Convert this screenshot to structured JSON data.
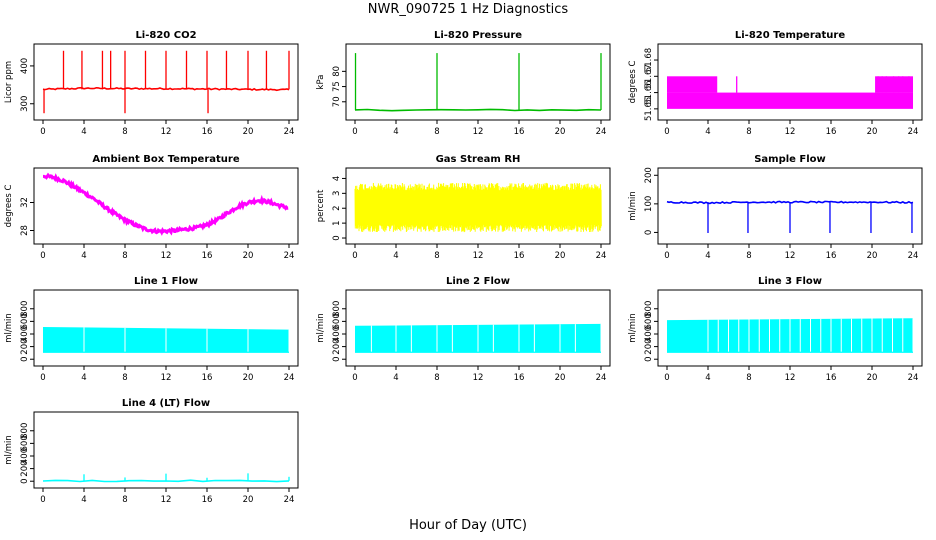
{
  "title": "NWR_090725  1 Hz Diagnostics",
  "xlabel": "Hour of Day (UTC)",
  "colors": {
    "co2": "#ff0000",
    "pressure": "#00bb00",
    "temperature": "#ff00ff",
    "box_temperature": "#ff00ff",
    "rh": "#ffff00",
    "sample_flow": "#0000ff",
    "line_flow": "#00ffff"
  },
  "chart_data": [
    {
      "type": "line",
      "title": "Li-820 CO2",
      "ylabel": "Licor ppm",
      "xlim": [
        0,
        24
      ],
      "x_ticks": [
        "0",
        "4",
        "8",
        "12",
        "16",
        "20",
        "24"
      ],
      "ylim": [
        265,
        450
      ],
      "y_ticks": [
        "300",
        "400"
      ],
      "color": "co2",
      "baseline": [
        [
          0,
          338
        ],
        [
          4,
          341
        ],
        [
          8,
          340
        ],
        [
          12,
          340
        ],
        [
          16,
          339
        ],
        [
          20,
          338
        ],
        [
          24,
          337
        ]
      ],
      "spikes_up": [
        2.0,
        3.8,
        5.8,
        6.6,
        8.0,
        10.0,
        12.0,
        14.0,
        16.0,
        17.9,
        20.0,
        21.8,
        24.0
      ],
      "spikes_up_value": 440,
      "spikes_down": [
        0.1,
        8.0,
        16.1
      ],
      "spikes_down_value": 275
    },
    {
      "type": "line",
      "title": "Li-820 Pressure",
      "ylabel": "kPa",
      "xlim": [
        0,
        24
      ],
      "x_ticks": [
        "0",
        "4",
        "8",
        "12",
        "16",
        "20",
        "24"
      ],
      "ylim": [
        65,
        88
      ],
      "y_ticks": [
        "70",
        "75",
        "80"
      ],
      "color": "pressure",
      "baseline": [
        [
          0,
          67.3
        ],
        [
          24,
          67.3
        ]
      ],
      "spikes_up": [
        0.05,
        8.0,
        16.0,
        24.0
      ],
      "spikes_up_value": 86,
      "spikes_down": [],
      "spikes_down_value": 67
    },
    {
      "type": "area",
      "title": "Li-820 Temperature",
      "ylabel": "degrees C",
      "xlim": [
        0,
        24
      ],
      "x_ticks": [
        "0",
        "4",
        "8",
        "12",
        "16",
        "20",
        "24"
      ],
      "ylim": [
        51.645,
        51.688
      ],
      "y_ticks": [
        "51.65",
        "51.66",
        "51.67",
        "51.68"
      ],
      "color": "temperature",
      "bands": [
        {
          "x_from": 0,
          "x_to": 24,
          "low": 51.65,
          "high": 51.66
        },
        {
          "x_from": 0,
          "x_to": 4.9,
          "low": 51.66,
          "high": 51.67
        },
        {
          "x_from": 20.3,
          "x_to": 24,
          "low": 51.66,
          "high": 51.67
        }
      ],
      "spikes_up": [
        6.8,
        20.6,
        21.0,
        21.4,
        22.1,
        22.6,
        23.0,
        23.6
      ],
      "spikes_up_value": 51.67
    },
    {
      "type": "line",
      "title": "Ambient Box Temperature",
      "ylabel": "degrees C",
      "xlim": [
        0,
        24
      ],
      "x_ticks": [
        "0",
        "4",
        "8",
        "12",
        "16",
        "20",
        "24"
      ],
      "ylim": [
        26.5,
        36.5
      ],
      "y_ticks": [
        "28",
        "32"
      ],
      "color": "box_temperature",
      "x": [
        0,
        1,
        2,
        3,
        4,
        5,
        6,
        7,
        8,
        9,
        10,
        11,
        12,
        13,
        14,
        15,
        16,
        17,
        18,
        19,
        20,
        21,
        22,
        23,
        24
      ],
      "y": [
        35.8,
        35.6,
        35.1,
        34.3,
        33.4,
        32.5,
        31.4,
        30.4,
        29.5,
        28.8,
        28.2,
        27.9,
        27.9,
        28.0,
        28.2,
        28.4,
        28.8,
        29.5,
        30.5,
        31.4,
        32.0,
        32.3,
        32.1,
        31.6,
        31.2
      ],
      "noise": 0.45
    },
    {
      "type": "area",
      "title": "Gas Stream RH",
      "ylabel": "percent",
      "xlim": [
        0,
        24
      ],
      "x_ticks": [
        "0",
        "4",
        "8",
        "12",
        "16",
        "20",
        "24"
      ],
      "ylim": [
        -0.2,
        4.5
      ],
      "y_ticks": [
        "0",
        "1",
        "2",
        "3",
        "4"
      ],
      "color": "rh",
      "low": 0.4,
      "high": 3.7
    },
    {
      "type": "line",
      "title": "Sample Flow",
      "ylabel": "ml/min",
      "xlim": [
        0,
        24
      ],
      "x_ticks": [
        "0",
        "4",
        "8",
        "12",
        "16",
        "20",
        "24"
      ],
      "ylim": [
        -30,
        215
      ],
      "y_ticks": [
        "0",
        "100",
        "200"
      ],
      "color": "sample_flow",
      "baseline": [
        [
          0,
          106
        ],
        [
          4,
          104
        ],
        [
          8,
          106
        ],
        [
          12,
          106
        ],
        [
          16,
          106
        ],
        [
          20,
          106
        ],
        [
          24,
          105
        ]
      ],
      "spikes_down": [
        4.0,
        7.9,
        12.0,
        15.9,
        19.9,
        23.9
      ],
      "spikes_down_value": -2
    },
    {
      "type": "area",
      "title": "Line 1 Flow",
      "ylabel": "ml/min",
      "xlim": [
        0,
        24
      ],
      "x_ticks": [
        "0",
        "4",
        "8",
        "12",
        "16",
        "20",
        "24"
      ],
      "ylim": [
        -60,
        1050
      ],
      "y_ticks": [
        "0",
        "200",
        "400",
        "600",
        "800"
      ],
      "color": "line_flow",
      "low": 100,
      "high_start": 510,
      "high_end": 470,
      "gaps": [
        4,
        8,
        12,
        16,
        20,
        24
      ]
    },
    {
      "type": "area",
      "title": "Line 2 Flow",
      "ylabel": "ml/min",
      "xlim": [
        0,
        24
      ],
      "x_ticks": [
        "0",
        "4",
        "8",
        "12",
        "16",
        "20",
        "24"
      ],
      "ylim": [
        -60,
        1050
      ],
      "y_ticks": [
        "0",
        "200",
        "400",
        "600",
        "800"
      ],
      "color": "line_flow",
      "low": 100,
      "high_start": 530,
      "high_end": 560,
      "gaps": [
        1.6,
        4,
        5.5,
        8,
        9.5,
        12,
        13.5,
        16,
        17.5,
        20,
        21.5,
        24
      ]
    },
    {
      "type": "area",
      "title": "Line 3 Flow",
      "ylabel": "ml/min",
      "xlim": [
        0,
        24
      ],
      "x_ticks": [
        "0",
        "4",
        "8",
        "12",
        "16",
        "20",
        "24"
      ],
      "ylim": [
        -60,
        1050
      ],
      "y_ticks": [
        "0",
        "200",
        "400",
        "600",
        "800"
      ],
      "color": "line_flow",
      "low": 100,
      "high_start": 620,
      "high_end": 650,
      "gaps": [
        4,
        5,
        6,
        7,
        8,
        9,
        10,
        11,
        12,
        13,
        14,
        15,
        16,
        17,
        18,
        19,
        20,
        21,
        22,
        23,
        24
      ]
    },
    {
      "type": "line",
      "title": "Line 4 (LT) Flow",
      "ylabel": "ml/min",
      "xlim": [
        0,
        24
      ],
      "x_ticks": [
        "0",
        "4",
        "8",
        "12",
        "16",
        "20",
        "24"
      ],
      "ylim": [
        -60,
        1050
      ],
      "y_ticks": [
        "0",
        "200",
        "400",
        "600",
        "800"
      ],
      "color": "line_flow",
      "baseline": [
        [
          0,
          5
        ],
        [
          24,
          5
        ]
      ],
      "spikes_up": [
        4.0,
        8.0,
        12.0,
        16.0,
        20.0,
        24.0
      ],
      "spikes_up_values": [
        110,
        60,
        120,
        55,
        125,
        70
      ]
    }
  ]
}
